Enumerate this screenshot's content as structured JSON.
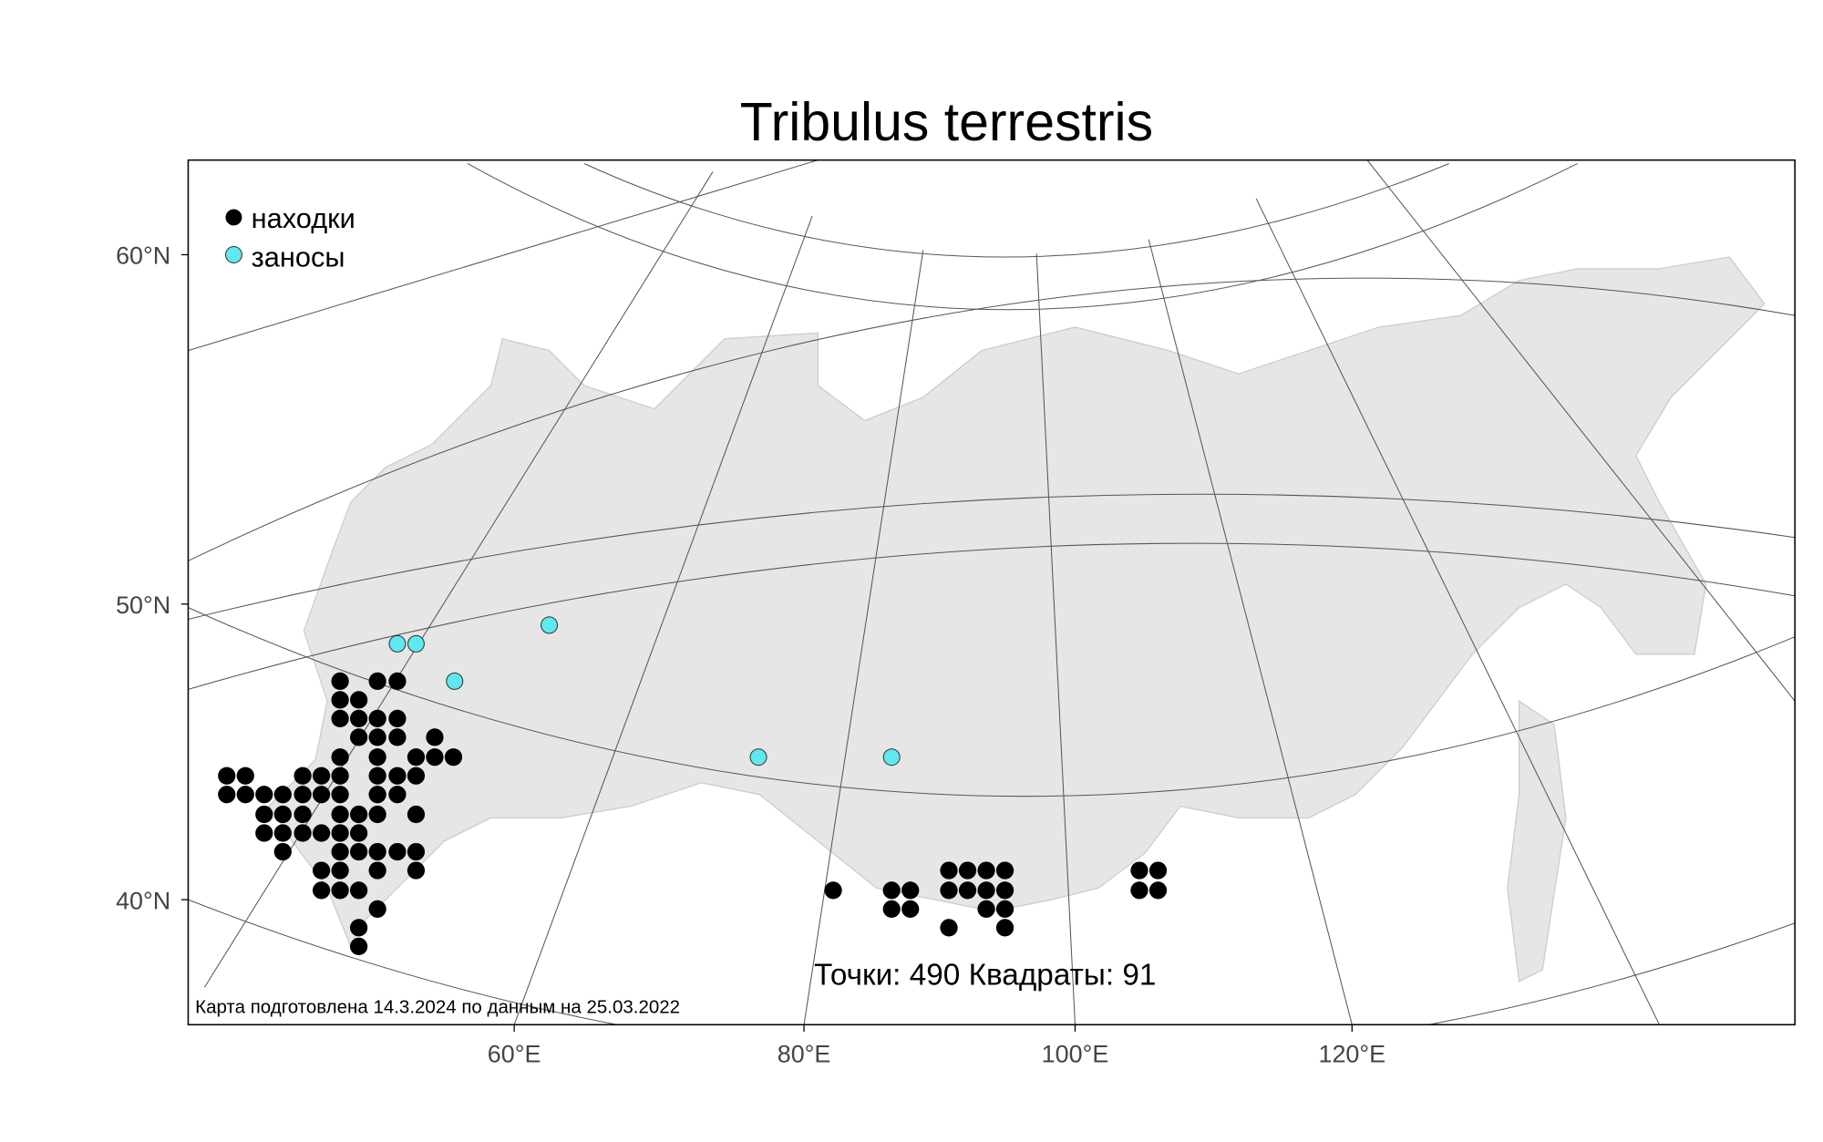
{
  "title": "Tribulus terrestris",
  "legend": [
    "находки",
    "заносы"
  ],
  "lat_labels": [
    "60°N",
    "50°N",
    "40°N"
  ],
  "lon_labels": [
    "60°E",
    "80°E",
    "100°E",
    "120°E"
  ],
  "summary": "Точки: 490 Квадраты: 91",
  "note": "Карта подготовлена 14.3.2024 по данным на 25.03.2022"
}
